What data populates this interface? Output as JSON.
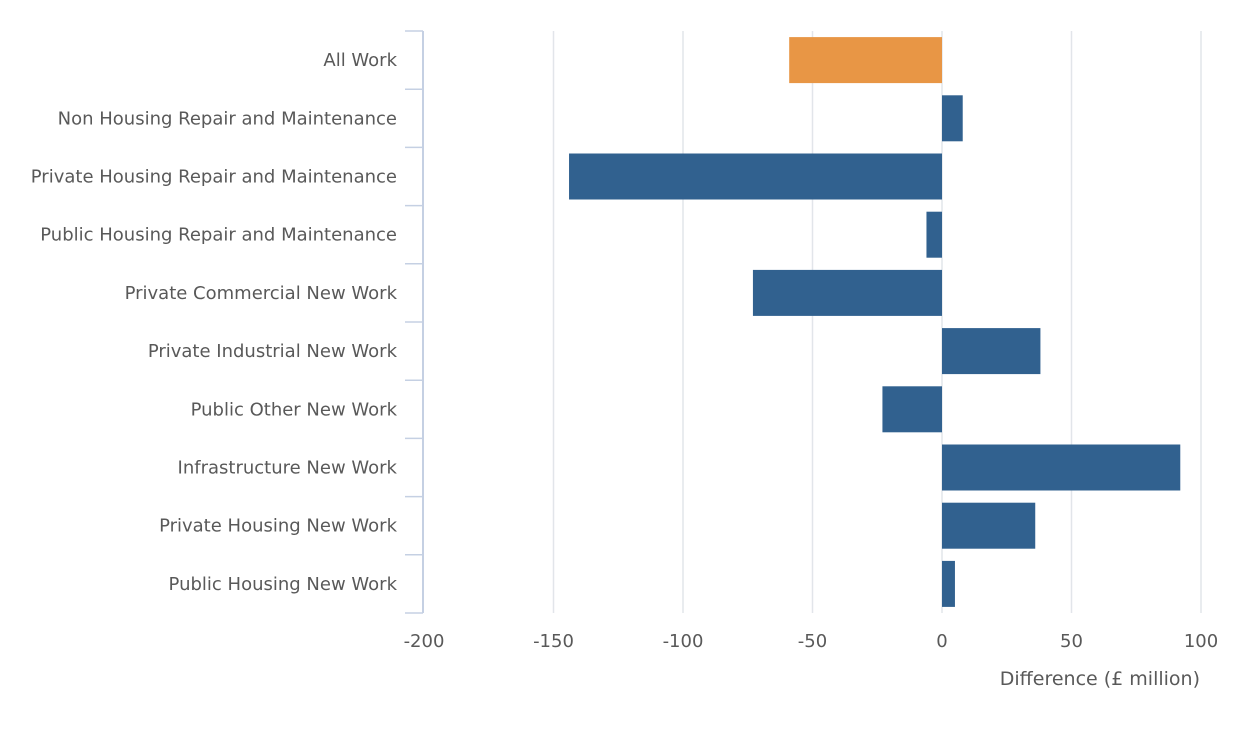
{
  "chart_data": {
    "type": "bar",
    "orientation": "horizontal",
    "categories": [
      "All Work",
      "Non Housing Repair and Maintenance",
      "Private Housing Repair and Maintenance",
      "Public Housing Repair and Maintenance",
      "Private Commercial New Work",
      "Private Industrial New Work",
      "Public Other New Work",
      "Infrastructure New Work",
      "Private Housing New Work",
      "Public Housing New Work"
    ],
    "values": [
      -59,
      8,
      -144,
      -6,
      -73,
      38,
      -23,
      92,
      36,
      5
    ],
    "highlight_index": 0,
    "xlabel": "Difference (£ million)",
    "ylabel": "",
    "title": "",
    "xlim": [
      -200,
      100
    ],
    "xticks": [
      -200,
      -150,
      -100,
      -50,
      0,
      50,
      100
    ],
    "xtick_labels": [
      "-200",
      "-150",
      "-100",
      "-50",
      "0",
      "50",
      "100"
    ],
    "grid": "vertical",
    "colors": {
      "bar": "#31618f",
      "highlight": "#e89645",
      "grid": "#e2e5ea",
      "axis": "#c5d0e3",
      "text": "#595959"
    }
  }
}
